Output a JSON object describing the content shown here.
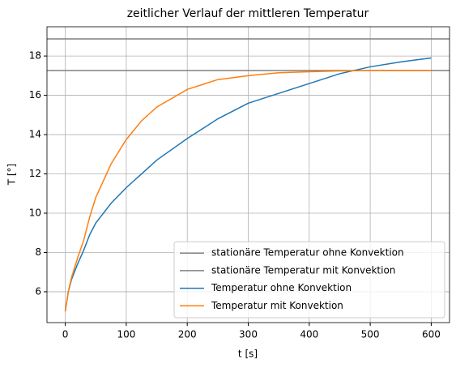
{
  "chart_data": {
    "type": "line",
    "title": "zeitlicher Verlauf der mittleren Temperatur",
    "xlabel": "t [s]",
    "ylabel": "T [°]",
    "xlim": [
      -30,
      630
    ],
    "ylim": [
      4.43,
      19.49
    ],
    "xticks": [
      0,
      100,
      200,
      300,
      400,
      500,
      600
    ],
    "yticks": [
      6,
      8,
      10,
      12,
      14,
      16,
      18
    ],
    "grid": true,
    "legend": "lower right",
    "hlines": [
      {
        "name": "stationäre Temperatur ohne Konvektion",
        "color": "#808080",
        "value": 18.87
      },
      {
        "name": "stationäre Temperatur mit Konvektion",
        "color": "#808080",
        "value": 17.26
      }
    ],
    "x": [
      0,
      5,
      10,
      20,
      30,
      40,
      50,
      75,
      100,
      125,
      150,
      200,
      250,
      300,
      350,
      400,
      450,
      500,
      550,
      600
    ],
    "series": [
      {
        "name": "Temperatur ohne Konvektion",
        "color": "#1f77b4",
        "values": [
          5,
          6.0,
          6.6,
          7.4,
          8.1,
          8.9,
          9.5,
          10.5,
          11.3,
          12.0,
          12.7,
          13.8,
          14.8,
          15.6,
          16.1,
          16.6,
          17.1,
          17.45,
          17.7,
          17.9
        ]
      },
      {
        "name": "Temperatur mit Konvektion",
        "color": "#ff7f0e",
        "values": [
          5,
          6.0,
          6.7,
          7.7,
          8.6,
          9.8,
          10.8,
          12.5,
          13.75,
          14.7,
          15.4,
          16.3,
          16.8,
          17.0,
          17.15,
          17.2,
          17.24,
          17.26,
          17.26,
          17.26
        ]
      }
    ]
  }
}
